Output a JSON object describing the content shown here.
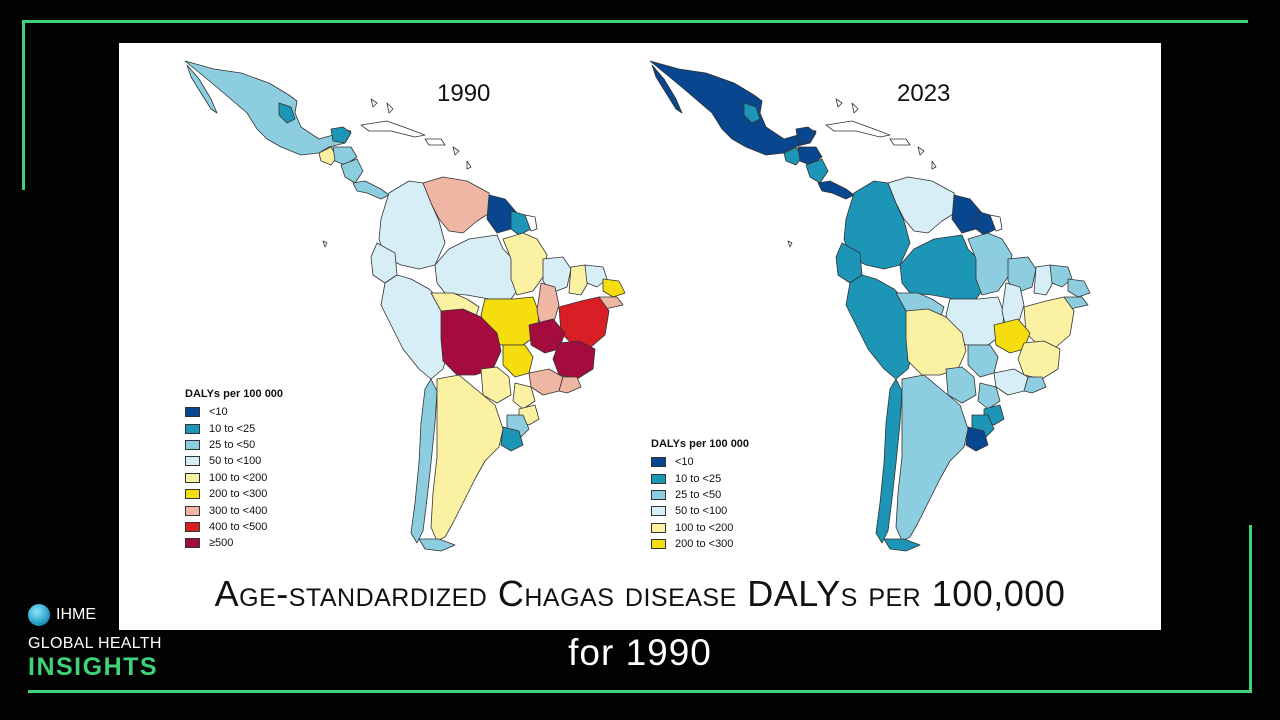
{
  "maps": [
    {
      "year": "1990"
    },
    {
      "year": "2023"
    }
  ],
  "legend_1990": {
    "title": "DALYs per 100 000",
    "items": [
      {
        "label": "<10",
        "color": "#08478f"
      },
      {
        "label": "10 to <25",
        "color": "#1c95b6"
      },
      {
        "label": "25 to <50",
        "color": "#8ccde0"
      },
      {
        "label": "50 to <100",
        "color": "#d7eef6"
      },
      {
        "label": "100 to <200",
        "color": "#fbf1a3"
      },
      {
        "label": "200 to <300",
        "color": "#f6de0e"
      },
      {
        "label": "300 to <400",
        "color": "#f0b6a4"
      },
      {
        "label": "400 to <500",
        "color": "#d91f26"
      },
      {
        "label": "≥500",
        "color": "#a40c3d"
      }
    ]
  },
  "legend_2023": {
    "title": "DALYs per 100 000",
    "items": [
      {
        "label": "<10",
        "color": "#08478f"
      },
      {
        "label": "10 to <25",
        "color": "#1c95b6"
      },
      {
        "label": "25 to <50",
        "color": "#8ccde0"
      },
      {
        "label": "50 to <100",
        "color": "#d7eef6"
      },
      {
        "label": "100 to <200",
        "color": "#fbf1a3"
      },
      {
        "label": "200 to <300",
        "color": "#f6de0e"
      }
    ]
  },
  "slide_title": "Age-standardized Chagas disease DALYs per 100,000",
  "caption": "for 1990",
  "brand": {
    "org": "IHME",
    "line1": "GLOBAL HEALTH",
    "line2": "INSIGHTS"
  },
  "colors": {
    "frame": "#3fd27a",
    "background": "#020202"
  }
}
